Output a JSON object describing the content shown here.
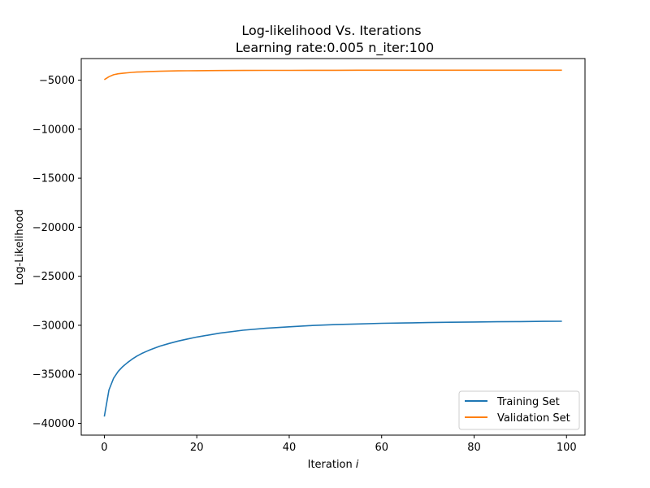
{
  "chart_data": {
    "type": "line",
    "title": "Log-likelihood Vs. Iterations",
    "subtitle": "Learning rate:0.005 n_iter:100",
    "xlabel": "Iteration",
    "xlabel_italic_symbol": "i",
    "ylabel": "Log-Likelihood",
    "xlim": [
      -5,
      104
    ],
    "ylim": [
      -41200,
      -2800
    ],
    "x_ticks": [
      0,
      20,
      40,
      60,
      80,
      100
    ],
    "x_tick_labels": [
      "0",
      "20",
      "40",
      "60",
      "80",
      "100"
    ],
    "y_ticks": [
      -5000,
      -10000,
      -15000,
      -20000,
      -25000,
      -30000,
      -35000,
      -40000
    ],
    "y_tick_labels": [
      "−5000",
      "−10000",
      "−15000",
      "−20000",
      "−25000",
      "−30000",
      "−35000",
      "−40000"
    ],
    "grid": false,
    "legend_position": "lower-right",
    "x": [
      0,
      1,
      2,
      3,
      4,
      5,
      6,
      7,
      8,
      9,
      10,
      12,
      14,
      16,
      18,
      20,
      25,
      30,
      35,
      40,
      45,
      50,
      55,
      60,
      65,
      70,
      75,
      80,
      85,
      90,
      95,
      99
    ],
    "series": [
      {
        "name": "Training Set",
        "color": "#1f77b4",
        "values": [
          -39300,
          -36600,
          -35400,
          -34700,
          -34200,
          -33800,
          -33450,
          -33150,
          -32900,
          -32680,
          -32480,
          -32130,
          -31850,
          -31600,
          -31400,
          -31200,
          -30800,
          -30500,
          -30300,
          -30150,
          -30020,
          -29930,
          -29860,
          -29800,
          -29760,
          -29720,
          -29690,
          -29660,
          -29640,
          -29620,
          -29600,
          -29590
        ]
      },
      {
        "name": "Validation Set",
        "color": "#ff7f0e",
        "values": [
          -4950,
          -4650,
          -4450,
          -4350,
          -4300,
          -4250,
          -4210,
          -4180,
          -4160,
          -4140,
          -4120,
          -4090,
          -4070,
          -4055,
          -4045,
          -4035,
          -4020,
          -4010,
          -4005,
          -4000,
          -3995,
          -3992,
          -3990,
          -3990,
          -3990,
          -3990,
          -3990,
          -3990,
          -3990,
          -3990,
          -3990,
          -3990
        ]
      }
    ]
  }
}
